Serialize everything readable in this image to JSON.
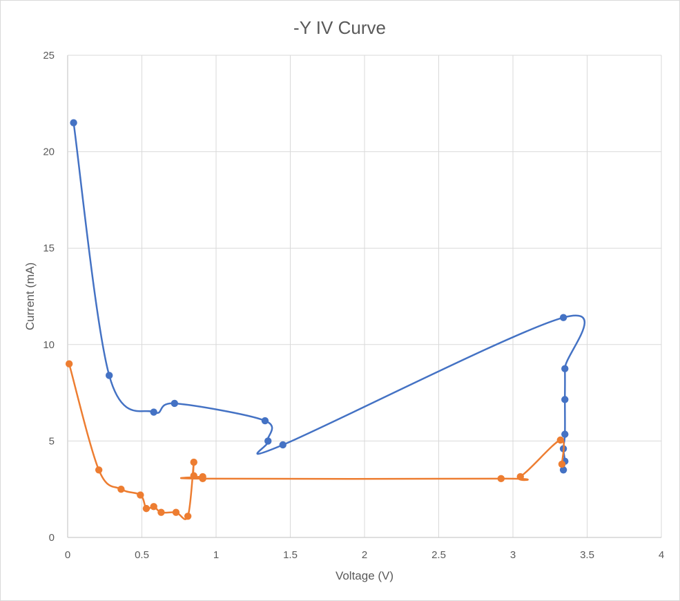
{
  "chart_data": {
    "type": "scatter",
    "title": "-Y IV Curve",
    "xlabel": "Voltage (V)",
    "ylabel": "Current (mA)",
    "xlim": [
      0,
      4
    ],
    "ylim": [
      0,
      25
    ],
    "x_ticks": [
      "0",
      "0.5",
      "1",
      "1.5",
      "2",
      "2.5",
      "3",
      "3.5",
      "4"
    ],
    "y_ticks": [
      "0",
      "5",
      "10",
      "15",
      "20",
      "25"
    ],
    "grid": true,
    "smoothed_lines": true,
    "series": [
      {
        "color": "#4472c4",
        "points": [
          [
            0.04,
            21.5
          ],
          [
            0.28,
            8.4
          ],
          [
            0.58,
            6.5
          ],
          [
            0.72,
            6.95
          ],
          [
            1.33,
            6.05
          ],
          [
            1.35,
            5.0
          ],
          [
            1.45,
            4.8
          ],
          [
            3.34,
            11.4
          ],
          [
            3.35,
            8.75
          ],
          [
            3.35,
            7.15
          ],
          [
            3.35,
            5.35
          ],
          [
            3.34,
            4.6
          ],
          [
            3.35,
            3.95
          ],
          [
            3.34,
            3.5
          ]
        ]
      },
      {
        "color": "#ed7d31",
        "points": [
          [
            0.01,
            9.0
          ],
          [
            0.21,
            3.5
          ],
          [
            0.36,
            2.5
          ],
          [
            0.49,
            2.2
          ],
          [
            0.53,
            1.5
          ],
          [
            0.58,
            1.6
          ],
          [
            0.63,
            1.3
          ],
          [
            0.73,
            1.3
          ],
          [
            0.81,
            1.1
          ],
          [
            0.85,
            3.9
          ],
          [
            0.85,
            3.2
          ],
          [
            0.91,
            3.15
          ],
          [
            0.91,
            3.05
          ],
          [
            2.92,
            3.05
          ],
          [
            3.05,
            3.15
          ],
          [
            3.32,
            5.05
          ],
          [
            3.33,
            3.8
          ]
        ]
      }
    ]
  }
}
